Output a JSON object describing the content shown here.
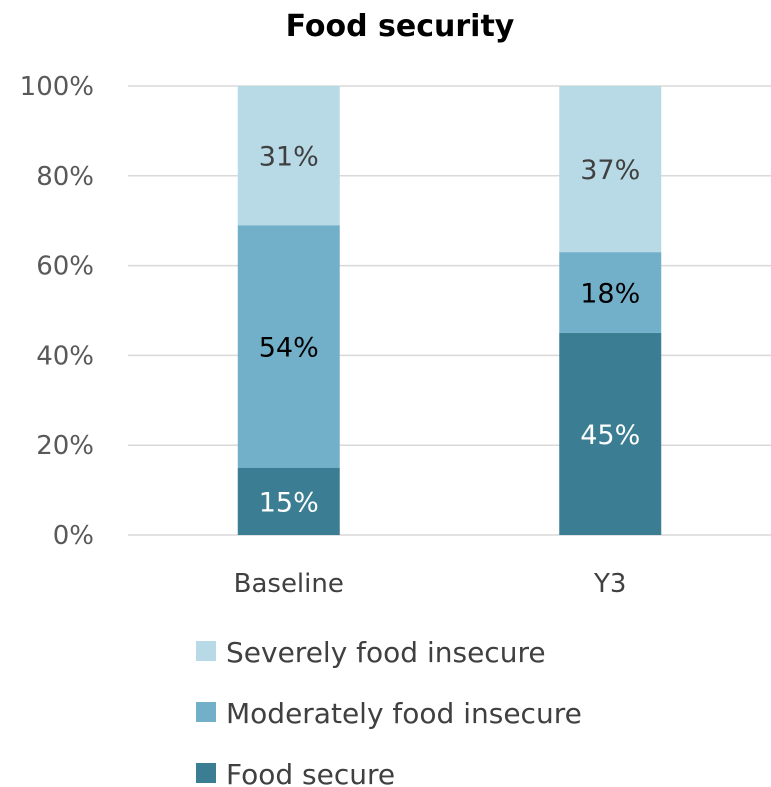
{
  "chart_data": {
    "type": "bar",
    "stacked": true,
    "title": "Food security",
    "categories": [
      "Baseline",
      "Y3"
    ],
    "series": [
      {
        "name": "Food secure",
        "values": [
          15,
          45
        ],
        "labels": [
          "15%",
          "45%"
        ],
        "color": "#3B7D93",
        "label_color": "#ffffff"
      },
      {
        "name": "Moderately food insecure",
        "values": [
          54,
          18
        ],
        "labels": [
          "54%",
          "18%"
        ],
        "color": "#72B0C9",
        "label_color": "#000000"
      },
      {
        "name": "Severely food insecure",
        "values": [
          31,
          37
        ],
        "labels": [
          "31%",
          "37%"
        ],
        "color": "#B8D9E6",
        "label_color": "#404040"
      }
    ],
    "yticks": [
      "0%",
      "20%",
      "40%",
      "60%",
      "80%",
      "100%"
    ],
    "ylim": [
      0,
      100
    ],
    "grid": true,
    "legend_position": "bottom",
    "legend_order": [
      "Severely food insecure",
      "Moderately food insecure",
      "Food secure"
    ]
  }
}
